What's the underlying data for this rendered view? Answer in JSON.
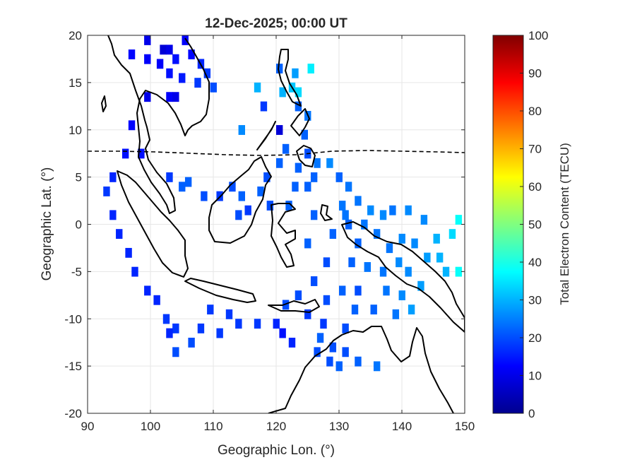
{
  "chart_data": {
    "type": "heatmap",
    "title": "12-Dec-2025; 00:00 UT",
    "xlabel": "Geographic Lon. (°)",
    "ylabel": "Geographic Lat. (°)",
    "xlim": [
      90,
      150
    ],
    "ylim": [
      -20,
      20
    ],
    "xticks": [
      90,
      100,
      110,
      120,
      130,
      140,
      150
    ],
    "yticks": [
      -20,
      -15,
      -10,
      -5,
      0,
      5,
      10,
      15,
      20
    ],
    "grid": true,
    "colorbar": {
      "label": "Total Electron Content (TECU)",
      "range": [
        0,
        100
      ],
      "ticks": [
        0,
        10,
        20,
        30,
        40,
        50,
        60,
        70,
        80,
        90,
        100
      ],
      "colormap": "jet"
    },
    "cell_size_deg": [
      1,
      1
    ],
    "tec_cells": [
      {
        "lon": 99.5,
        "lat": 19.5,
        "tec": 10
      },
      {
        "lon": 102,
        "lat": 18.5,
        "tec": 8
      },
      {
        "lon": 103,
        "lat": 18.5,
        "tec": 10
      },
      {
        "lon": 105.5,
        "lat": 19.5,
        "tec": 12
      },
      {
        "lon": 97,
        "lat": 18,
        "tec": 13
      },
      {
        "lon": 99.5,
        "lat": 17.5,
        "tec": 12
      },
      {
        "lon": 101.5,
        "lat": 17,
        "tec": 12
      },
      {
        "lon": 104,
        "lat": 17.5,
        "tec": 14
      },
      {
        "lon": 106.5,
        "lat": 18,
        "tec": 13
      },
      {
        "lon": 108,
        "lat": 17,
        "tec": 16
      },
      {
        "lon": 103,
        "lat": 16,
        "tec": 14
      },
      {
        "lon": 105,
        "lat": 15.5,
        "tec": 15
      },
      {
        "lon": 107.5,
        "lat": 15,
        "tec": 18
      },
      {
        "lon": 110,
        "lat": 14.5,
        "tec": 20
      },
      {
        "lon": 109,
        "lat": 16,
        "tec": 18
      },
      {
        "lon": 99.5,
        "lat": 13.5,
        "tec": 10
      },
      {
        "lon": 103,
        "lat": 13.5,
        "tec": 12
      },
      {
        "lon": 104,
        "lat": 13.5,
        "tec": 10
      },
      {
        "lon": 97,
        "lat": 10.5,
        "tec": 13
      },
      {
        "lon": 120.5,
        "lat": 16.5,
        "tec": 22
      },
      {
        "lon": 123,
        "lat": 16,
        "tec": 28
      },
      {
        "lon": 125.5,
        "lat": 16.5,
        "tec": 36
      },
      {
        "lon": 117,
        "lat": 14.5,
        "tec": 30
      },
      {
        "lon": 121,
        "lat": 14,
        "tec": 30
      },
      {
        "lon": 122.5,
        "lat": 14.5,
        "tec": 32
      },
      {
        "lon": 123.5,
        "lat": 14,
        "tec": 34
      },
      {
        "lon": 118,
        "lat": 12.5,
        "tec": 18
      },
      {
        "lon": 123.5,
        "lat": 12.5,
        "tec": 22
      },
      {
        "lon": 125,
        "lat": 11.5,
        "tec": 24
      },
      {
        "lon": 114.5,
        "lat": 10,
        "tec": 26
      },
      {
        "lon": 120.5,
        "lat": 10,
        "tec": 8
      },
      {
        "lon": 124.5,
        "lat": 9.5,
        "tec": 22
      },
      {
        "lon": 121.5,
        "lat": 8,
        "tec": 22
      },
      {
        "lon": 125,
        "lat": 7.5,
        "tec": 20
      },
      {
        "lon": 126.5,
        "lat": 6.5,
        "tec": 24
      },
      {
        "lon": 128.5,
        "lat": 6.5,
        "tec": 26
      },
      {
        "lon": 126,
        "lat": 5,
        "tec": 22
      },
      {
        "lon": 125,
        "lat": 4,
        "tec": 22
      },
      {
        "lon": 123,
        "lat": 4,
        "tec": 22
      },
      {
        "lon": 117.5,
        "lat": 3.5,
        "tec": 22
      },
      {
        "lon": 113,
        "lat": 4,
        "tec": 20
      },
      {
        "lon": 114.5,
        "lat": 3,
        "tec": 22
      },
      {
        "lon": 115.5,
        "lat": 1.5,
        "tec": 18
      },
      {
        "lon": 111,
        "lat": 3,
        "tec": 18
      },
      {
        "lon": 108.5,
        "lat": 3,
        "tec": 20
      },
      {
        "lon": 105,
        "lat": 4,
        "tec": 22
      },
      {
        "lon": 106,
        "lat": 4.5,
        "tec": 22
      },
      {
        "lon": 103,
        "lat": 5,
        "tec": 18
      },
      {
        "lon": 130,
        "lat": 5,
        "tec": 22
      },
      {
        "lon": 131.5,
        "lat": 4,
        "tec": 24
      },
      {
        "lon": 130.5,
        "lat": 2,
        "tec": 24
      },
      {
        "lon": 133,
        "lat": 2.5,
        "tec": 24
      },
      {
        "lon": 135,
        "lat": 1.5,
        "tec": 26
      },
      {
        "lon": 137,
        "lat": 1,
        "tec": 26
      },
      {
        "lon": 138.5,
        "lat": 1.5,
        "tec": 24
      },
      {
        "lon": 141,
        "lat": 1.5,
        "tec": 26
      },
      {
        "lon": 143.5,
        "lat": 0.5,
        "tec": 26
      },
      {
        "lon": 149,
        "lat": 0.5,
        "tec": 38
      },
      {
        "lon": 131.5,
        "lat": 0,
        "tec": 22
      },
      {
        "lon": 129,
        "lat": -1,
        "tec": 22
      },
      {
        "lon": 133,
        "lat": -2,
        "tec": 22
      },
      {
        "lon": 136,
        "lat": -1,
        "tec": 24
      },
      {
        "lon": 140,
        "lat": -1.5,
        "tec": 26
      },
      {
        "lon": 142,
        "lat": -2,
        "tec": 26
      },
      {
        "lon": 145.5,
        "lat": -1.5,
        "tec": 30
      },
      {
        "lon": 148,
        "lat": -1,
        "tec": 34
      },
      {
        "lon": 144,
        "lat": -3.5,
        "tec": 28
      },
      {
        "lon": 146,
        "lat": -3.5,
        "tec": 30
      },
      {
        "lon": 147,
        "lat": -5,
        "tec": 30
      },
      {
        "lon": 149,
        "lat": -5,
        "tec": 38
      },
      {
        "lon": 132,
        "lat": -4,
        "tec": 22
      },
      {
        "lon": 134.5,
        "lat": -4.5,
        "tec": 24
      },
      {
        "lon": 137,
        "lat": -5,
        "tec": 24
      },
      {
        "lon": 139.5,
        "lat": -4,
        "tec": 26
      },
      {
        "lon": 141,
        "lat": -5,
        "tec": 26
      },
      {
        "lon": 143,
        "lat": -6.5,
        "tec": 28
      },
      {
        "lon": 137.5,
        "lat": -7,
        "tec": 24
      },
      {
        "lon": 140,
        "lat": -7.5,
        "tec": 26
      },
      {
        "lon": 133,
        "lat": -7,
        "tec": 20
      },
      {
        "lon": 130.5,
        "lat": -7,
        "tec": 22
      },
      {
        "lon": 128,
        "lat": -8,
        "tec": 20
      },
      {
        "lon": 132.5,
        "lat": -9,
        "tec": 22
      },
      {
        "lon": 135.5,
        "lat": -9,
        "tec": 22
      },
      {
        "lon": 141.5,
        "lat": -9,
        "tec": 28
      },
      {
        "lon": 139,
        "lat": -9.5,
        "tec": 24
      },
      {
        "lon": 131,
        "lat": -11,
        "tec": 20
      },
      {
        "lon": 127,
        "lat": -12,
        "tec": 22
      },
      {
        "lon": 129,
        "lat": -13,
        "tec": 20
      },
      {
        "lon": 131,
        "lat": -13.5,
        "tec": 20
      },
      {
        "lon": 133,
        "lat": -14.5,
        "tec": 22
      },
      {
        "lon": 136,
        "lat": -15,
        "tec": 24
      },
      {
        "lon": 130,
        "lat": -15,
        "tec": 22
      },
      {
        "lon": 128.5,
        "lat": -14.5,
        "tec": 20
      },
      {
        "lon": 126.5,
        "lat": -13.5,
        "tec": 20
      },
      {
        "lon": 122.5,
        "lat": -12.5,
        "tec": 16
      },
      {
        "lon": 121,
        "lat": -11.5,
        "tec": 14
      },
      {
        "lon": 120,
        "lat": -10.5,
        "tec": 16
      },
      {
        "lon": 117,
        "lat": -10.5,
        "tec": 18
      },
      {
        "lon": 114,
        "lat": -10.5,
        "tec": 18
      },
      {
        "lon": 111,
        "lat": -11.5,
        "tec": 18
      },
      {
        "lon": 108,
        "lat": -11,
        "tec": 18
      },
      {
        "lon": 106.5,
        "lat": -12.5,
        "tec": 20
      },
      {
        "lon": 104,
        "lat": -11,
        "tec": 18
      },
      {
        "lon": 103,
        "lat": -11.5,
        "tec": 16
      },
      {
        "lon": 104,
        "lat": -13.5,
        "tec": 20
      },
      {
        "lon": 102.5,
        "lat": -10,
        "tec": 18
      },
      {
        "lon": 101,
        "lat": -8,
        "tec": 16
      },
      {
        "lon": 99.5,
        "lat": -7,
        "tec": 16
      },
      {
        "lon": 97.5,
        "lat": -5,
        "tec": 16
      },
      {
        "lon": 96.5,
        "lat": -3,
        "tec": 16
      },
      {
        "lon": 95,
        "lat": -1,
        "tec": 16
      },
      {
        "lon": 94,
        "lat": 1,
        "tec": 16
      },
      {
        "lon": 93,
        "lat": 3.5,
        "tec": 18
      },
      {
        "lon": 94,
        "lat": 5,
        "tec": 16
      },
      {
        "lon": 96,
        "lat": 7.5,
        "tec": 14
      },
      {
        "lon": 98.5,
        "lat": 7.5,
        "tec": 14
      },
      {
        "lon": 125,
        "lat": -2,
        "tec": 22
      },
      {
        "lon": 128,
        "lat": -4,
        "tec": 20
      },
      {
        "lon": 126,
        "lat": -6,
        "tec": 20
      },
      {
        "lon": 123.5,
        "lat": -7.5,
        "tec": 20
      },
      {
        "lon": 121.5,
        "lat": -8.5,
        "tec": 20
      },
      {
        "lon": 125,
        "lat": -9.5,
        "tec": 18
      },
      {
        "lon": 127.5,
        "lat": -10.5,
        "tec": 18
      },
      {
        "lon": 112.5,
        "lat": -9.5,
        "tec": 18
      },
      {
        "lon": 109.5,
        "lat": -9,
        "tec": 18
      },
      {
        "lon": 114,
        "lat": 1,
        "tec": 20
      },
      {
        "lon": 119,
        "lat": 2,
        "tec": 20
      },
      {
        "lon": 122,
        "lat": 2,
        "tec": 22
      },
      {
        "lon": 126,
        "lat": 1,
        "tec": 22
      },
      {
        "lon": 131,
        "lat": 1,
        "tec": 24
      },
      {
        "lon": 134,
        "lat": 0,
        "tec": 24
      },
      {
        "lon": 138,
        "lat": -2.5,
        "tec": 24
      },
      {
        "lon": 120.5,
        "lat": 6.5,
        "tec": 22
      },
      {
        "lon": 118.5,
        "lat": 5,
        "tec": 20
      },
      {
        "lon": 123.5,
        "lat": 6,
        "tec": 22
      }
    ]
  }
}
